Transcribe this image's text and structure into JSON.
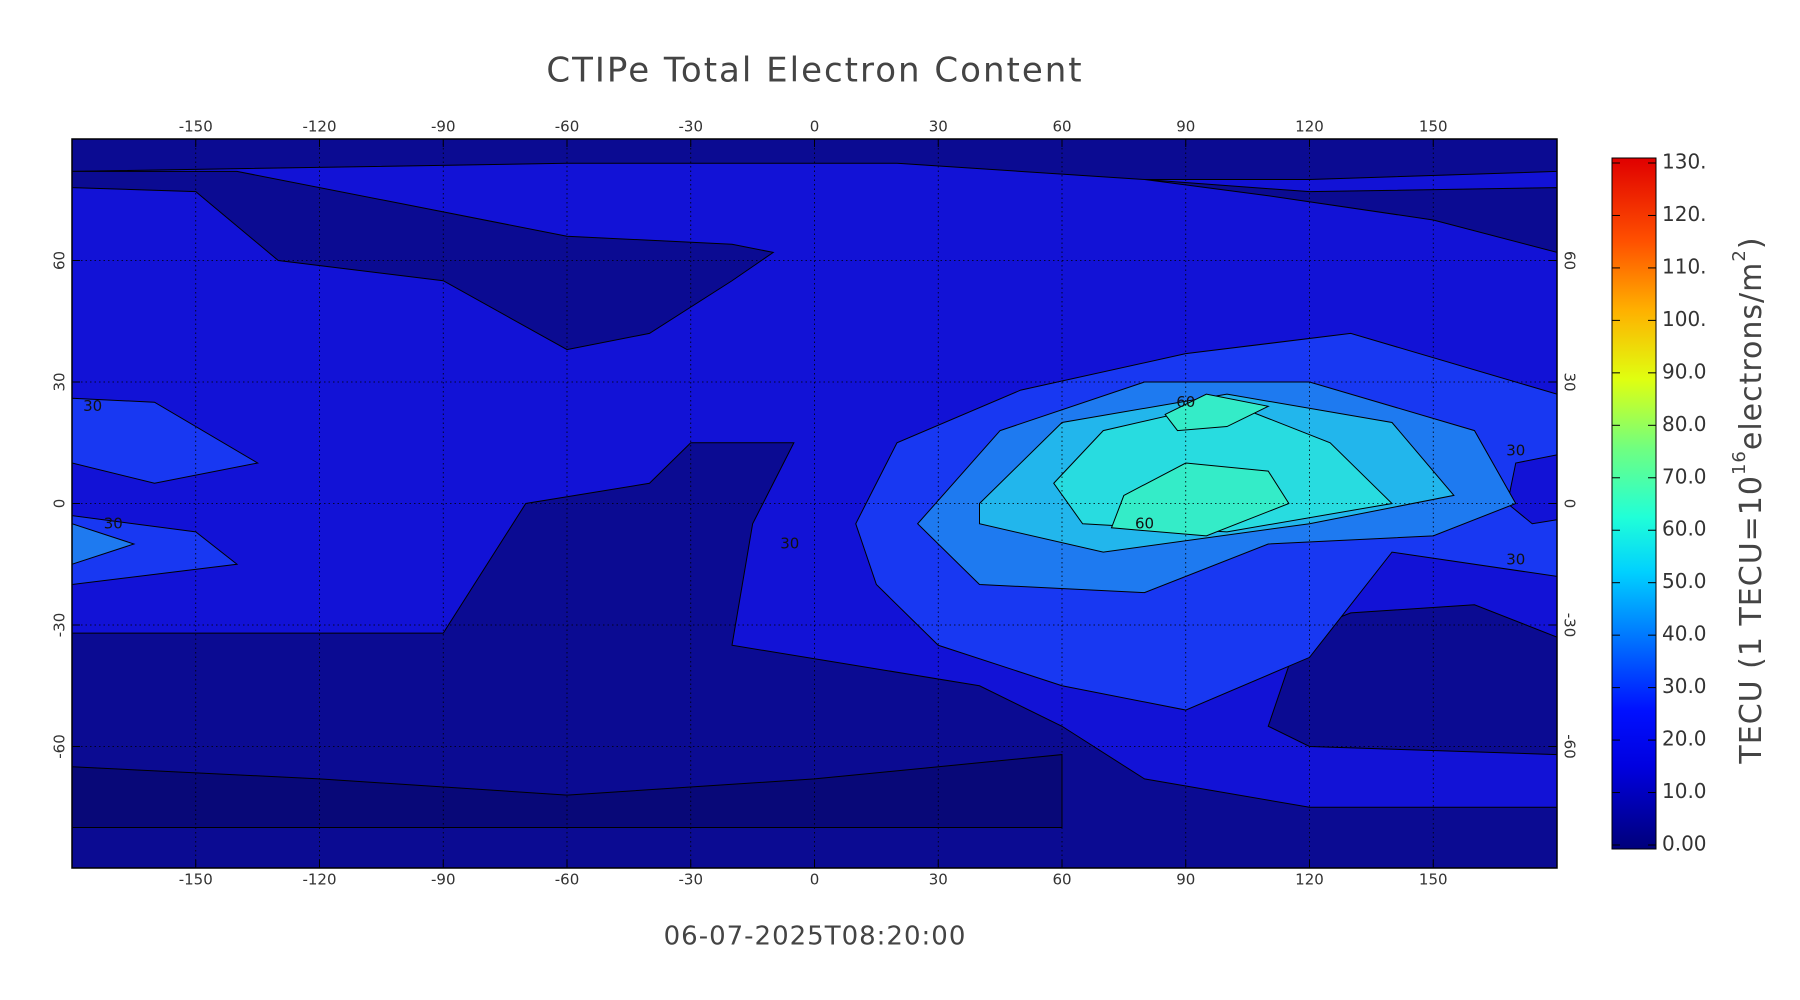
{
  "title": "CTIPe Total Electron Content",
  "timestamp": "06-07-2025T08:20:00",
  "map": {
    "xlim": [
      -180,
      180
    ],
    "ylim": [
      -90,
      90
    ],
    "xticks": [
      -150,
      -120,
      -90,
      -60,
      -30,
      0,
      30,
      60,
      90,
      120,
      150
    ],
    "yticks": [
      -60,
      -30,
      0,
      30,
      60
    ],
    "contour_labels": [
      "60",
      "60",
      "30",
      "30",
      "30",
      "30",
      "30"
    ]
  },
  "colorbar": {
    "clim": [
      0,
      130
    ],
    "ticks": [
      {
        "value": 0,
        "label": "0.00"
      },
      {
        "value": 10,
        "label": "10.0"
      },
      {
        "value": 20,
        "label": "20.0"
      },
      {
        "value": 30,
        "label": "30.0"
      },
      {
        "value": 40,
        "label": "40.0"
      },
      {
        "value": 50,
        "label": "50.0"
      },
      {
        "value": 60,
        "label": "60.0"
      },
      {
        "value": 70,
        "label": "70.0"
      },
      {
        "value": 80,
        "label": "80.0"
      },
      {
        "value": 90,
        "label": "90.0"
      },
      {
        "value": 100,
        "label": "100."
      },
      {
        "value": 110,
        "label": "110."
      },
      {
        "value": 120,
        "label": "120."
      },
      {
        "value": 130,
        "label": "130."
      }
    ],
    "label_parts": [
      "TECU (1 TECU=10",
      "16",
      "electrons/m",
      "2",
      ")"
    ]
  }
}
